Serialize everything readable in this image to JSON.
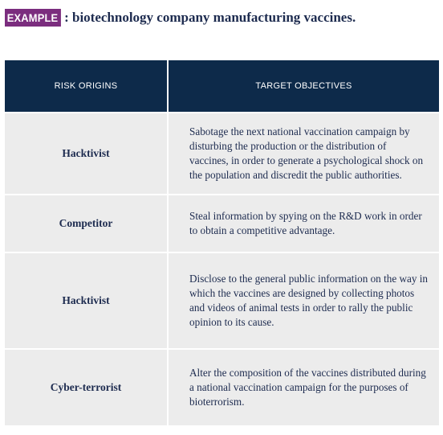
{
  "heading": {
    "badge": "EXAMPLE",
    "text": ": biotechnology company manufacturing vaccines."
  },
  "table": {
    "headers": {
      "origin": "RISK ORIGINS",
      "objective": "TARGET OBJECTIVES"
    },
    "rows": [
      {
        "origin": "Hacktivist",
        "objective": "Sabotage the next national vaccination campaign by disturbing the production or the distribution of vaccines, in order to generate a psychological shock on the population and discredit the public authorities."
      },
      {
        "origin": "Competitor",
        "objective": "Steal information by spying on the R&D work in order to obtain a competitive advantage."
      },
      {
        "origin": "Hacktivist",
        "objective": "Disclose to the general public information on the way in which the vaccines are designed by collecting photos and videos of animal tests in order to rally the public opinion to its cause."
      },
      {
        "origin": "Cyber-terrorist",
        "objective": "Alter the composition of the vaccines distributed during a national vaccination campaign for the purposes of bioterrorism."
      }
    ]
  },
  "colors": {
    "badge": "#7b2d7e",
    "header_bg": "#0d2a4a",
    "row_bg": "#ececec",
    "text": "#1d2b4f"
  }
}
